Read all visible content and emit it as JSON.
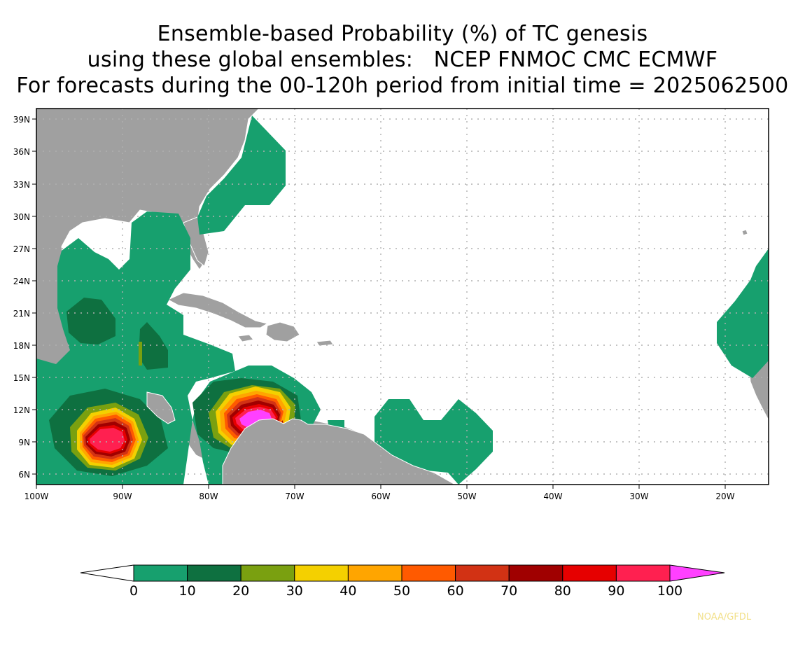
{
  "title": {
    "line1": "Ensemble-based Probability (%) of TC genesis",
    "line2": "using these global ensembles:   NCEP FNMOC CMC ECMWF",
    "line3": "For forecasts during the 00-120h period from initial time = 2025062500"
  },
  "map": {
    "lat_labels": [
      "39N",
      "36N",
      "33N",
      "30N",
      "27N",
      "24N",
      "21N",
      "18N",
      "15N",
      "12N",
      "9N",
      "6N"
    ],
    "lon_labels": [
      "100W",
      "90W",
      "80W",
      "70W",
      "60W",
      "50W",
      "40W",
      "30W",
      "20W"
    ],
    "land_color": "#a0a0a0",
    "ocean_color": "#ffffff"
  },
  "colorbar": {
    "labels": [
      "0",
      "10",
      "20",
      "30",
      "40",
      "50",
      "60",
      "70",
      "80",
      "90",
      "100"
    ],
    "colors": [
      "#17a06e",
      "#0e7040",
      "#7aa010",
      "#f4d000",
      "#ffa500",
      "#ff5a00",
      "#d23214",
      "#a00000",
      "#e60000",
      "#ff2050",
      "#ff40ff"
    ]
  },
  "credit": "NOAA/GFDL"
}
